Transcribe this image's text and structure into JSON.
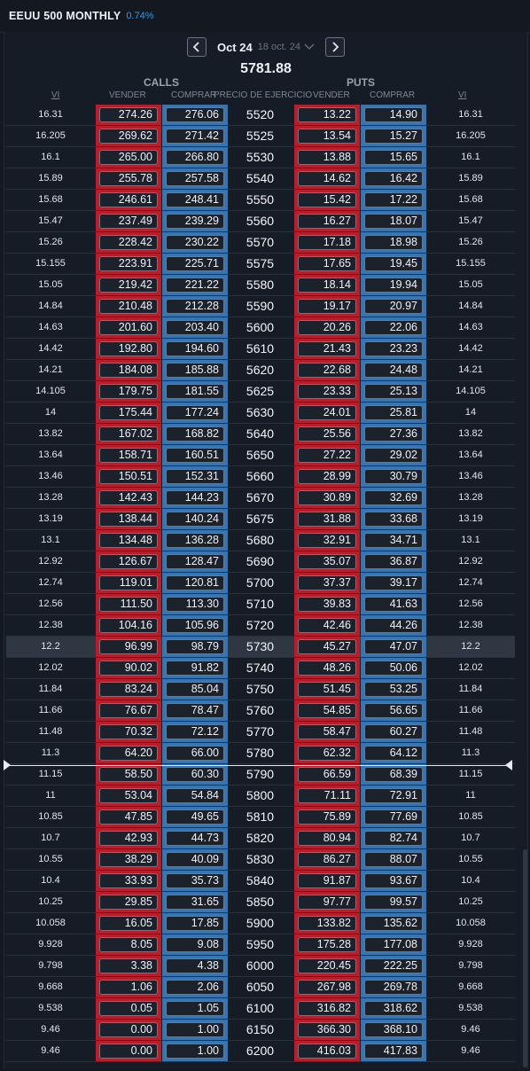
{
  "header": {
    "title": "EEUU 500 MONTHLY",
    "change": "0.74%"
  },
  "expiry": {
    "label": "Oct 24",
    "sub": "18 oct. 24"
  },
  "spot": "5781.88",
  "sections": {
    "calls": "CALLS",
    "puts": "PUTS"
  },
  "columns": {
    "iv_left": "VI",
    "call_sell": "VENDER",
    "call_buy": "COMPRAR",
    "strike": "PRECIO DE EJERCICIO",
    "put_sell": "VENDER",
    "put_buy": "COMPRAR",
    "iv_right": "VI"
  },
  "icons": {
    "prev": "chevron-left-icon",
    "next": "chevron-right-icon",
    "dropdown": "chevron-down-icon",
    "price_line": "price-line-marker-icon"
  },
  "colors": {
    "sell": "#b51e2a",
    "buy": "#3774b0",
    "accent": "#3b97e0",
    "atm_row": "#2e3742"
  },
  "highlighted_strike": "5730",
  "rows": [
    {
      "iv": "16.31",
      "cs": "274.26",
      "cb": "276.06",
      "k": "5520",
      "ps": "13.22",
      "pb": "14.90"
    },
    {
      "iv": "16.205",
      "cs": "269.62",
      "cb": "271.42",
      "k": "5525",
      "ps": "13.54",
      "pb": "15.27"
    },
    {
      "iv": "16.1",
      "cs": "265.00",
      "cb": "266.80",
      "k": "5530",
      "ps": "13.88",
      "pb": "15.65"
    },
    {
      "iv": "15.89",
      "cs": "255.78",
      "cb": "257.58",
      "k": "5540",
      "ps": "14.62",
      "pb": "16.42"
    },
    {
      "iv": "15.68",
      "cs": "246.61",
      "cb": "248.41",
      "k": "5550",
      "ps": "15.42",
      "pb": "17.22"
    },
    {
      "iv": "15.47",
      "cs": "237.49",
      "cb": "239.29",
      "k": "5560",
      "ps": "16.27",
      "pb": "18.07"
    },
    {
      "iv": "15.26",
      "cs": "228.42",
      "cb": "230.22",
      "k": "5570",
      "ps": "17.18",
      "pb": "18.98"
    },
    {
      "iv": "15.155",
      "cs": "223.91",
      "cb": "225.71",
      "k": "5575",
      "ps": "17.65",
      "pb": "19.45"
    },
    {
      "iv": "15.05",
      "cs": "219.42",
      "cb": "221.22",
      "k": "5580",
      "ps": "18.14",
      "pb": "19.94"
    },
    {
      "iv": "14.84",
      "cs": "210.48",
      "cb": "212.28",
      "k": "5590",
      "ps": "19.17",
      "pb": "20.97"
    },
    {
      "iv": "14.63",
      "cs": "201.60",
      "cb": "203.40",
      "k": "5600",
      "ps": "20.26",
      "pb": "22.06"
    },
    {
      "iv": "14.42",
      "cs": "192.80",
      "cb": "194.60",
      "k": "5610",
      "ps": "21.43",
      "pb": "23.23"
    },
    {
      "iv": "14.21",
      "cs": "184.08",
      "cb": "185.88",
      "k": "5620",
      "ps": "22.68",
      "pb": "24.48"
    },
    {
      "iv": "14.105",
      "cs": "179.75",
      "cb": "181.55",
      "k": "5625",
      "ps": "23.33",
      "pb": "25.13"
    },
    {
      "iv": "14",
      "cs": "175.44",
      "cb": "177.24",
      "k": "5630",
      "ps": "24.01",
      "pb": "25.81"
    },
    {
      "iv": "13.82",
      "cs": "167.02",
      "cb": "168.82",
      "k": "5640",
      "ps": "25.56",
      "pb": "27.36"
    },
    {
      "iv": "13.64",
      "cs": "158.71",
      "cb": "160.51",
      "k": "5650",
      "ps": "27.22",
      "pb": "29.02"
    },
    {
      "iv": "13.46",
      "cs": "150.51",
      "cb": "152.31",
      "k": "5660",
      "ps": "28.99",
      "pb": "30.79"
    },
    {
      "iv": "13.28",
      "cs": "142.43",
      "cb": "144.23",
      "k": "5670",
      "ps": "30.89",
      "pb": "32.69"
    },
    {
      "iv": "13.19",
      "cs": "138.44",
      "cb": "140.24",
      "k": "5675",
      "ps": "31.88",
      "pb": "33.68"
    },
    {
      "iv": "13.1",
      "cs": "134.48",
      "cb": "136.28",
      "k": "5680",
      "ps": "32.91",
      "pb": "34.71"
    },
    {
      "iv": "12.92",
      "cs": "126.67",
      "cb": "128.47",
      "k": "5690",
      "ps": "35.07",
      "pb": "36.87"
    },
    {
      "iv": "12.74",
      "cs": "119.01",
      "cb": "120.81",
      "k": "5700",
      "ps": "37.37",
      "pb": "39.17"
    },
    {
      "iv": "12.56",
      "cs": "111.50",
      "cb": "113.30",
      "k": "5710",
      "ps": "39.83",
      "pb": "41.63"
    },
    {
      "iv": "12.38",
      "cs": "104.16",
      "cb": "105.96",
      "k": "5720",
      "ps": "42.46",
      "pb": "44.26"
    },
    {
      "iv": "12.2",
      "cs": "96.99",
      "cb": "98.79",
      "k": "5730",
      "ps": "45.27",
      "pb": "47.07"
    },
    {
      "iv": "12.02",
      "cs": "90.02",
      "cb": "91.82",
      "k": "5740",
      "ps": "48.26",
      "pb": "50.06"
    },
    {
      "iv": "11.84",
      "cs": "83.24",
      "cb": "85.04",
      "k": "5750",
      "ps": "51.45",
      "pb": "53.25"
    },
    {
      "iv": "11.66",
      "cs": "76.67",
      "cb": "78.47",
      "k": "5760",
      "ps": "54.85",
      "pb": "56.65"
    },
    {
      "iv": "11.48",
      "cs": "70.32",
      "cb": "72.12",
      "k": "5770",
      "ps": "58.47",
      "pb": "60.27"
    },
    {
      "iv": "11.3",
      "cs": "64.20",
      "cb": "66.00",
      "k": "5780",
      "ps": "62.32",
      "pb": "64.12"
    },
    {
      "iv": "11.15",
      "cs": "58.50",
      "cb": "60.30",
      "k": "5790",
      "ps": "66.59",
      "pb": "68.39"
    },
    {
      "iv": "11",
      "cs": "53.04",
      "cb": "54.84",
      "k": "5800",
      "ps": "71.11",
      "pb": "72.91"
    },
    {
      "iv": "10.85",
      "cs": "47.85",
      "cb": "49.65",
      "k": "5810",
      "ps": "75.89",
      "pb": "77.69"
    },
    {
      "iv": "10.7",
      "cs": "42.93",
      "cb": "44.73",
      "k": "5820",
      "ps": "80.94",
      "pb": "82.74"
    },
    {
      "iv": "10.55",
      "cs": "38.29",
      "cb": "40.09",
      "k": "5830",
      "ps": "86.27",
      "pb": "88.07"
    },
    {
      "iv": "10.4",
      "cs": "33.93",
      "cb": "35.73",
      "k": "5840",
      "ps": "91.87",
      "pb": "93.67"
    },
    {
      "iv": "10.25",
      "cs": "29.85",
      "cb": "31.65",
      "k": "5850",
      "ps": "97.77",
      "pb": "99.57"
    },
    {
      "iv": "10.058",
      "cs": "16.05",
      "cb": "17.85",
      "k": "5900",
      "ps": "133.82",
      "pb": "135.62"
    },
    {
      "iv": "9.928",
      "cs": "8.05",
      "cb": "9.08",
      "k": "5950",
      "ps": "175.28",
      "pb": "177.08"
    },
    {
      "iv": "9.798",
      "cs": "3.38",
      "cb": "4.38",
      "k": "6000",
      "ps": "220.45",
      "pb": "222.25"
    },
    {
      "iv": "9.668",
      "cs": "1.06",
      "cb": "2.06",
      "k": "6050",
      "ps": "267.98",
      "pb": "269.78"
    },
    {
      "iv": "9.538",
      "cs": "0.05",
      "cb": "1.05",
      "k": "6100",
      "ps": "316.82",
      "pb": "318.62"
    },
    {
      "iv": "9.46",
      "cs": "0.00",
      "cb": "1.00",
      "k": "6150",
      "ps": "366.30",
      "pb": "368.10"
    },
    {
      "iv": "9.46",
      "cs": "0.00",
      "cb": "1.00",
      "k": "6200",
      "ps": "416.03",
      "pb": "417.83"
    }
  ]
}
